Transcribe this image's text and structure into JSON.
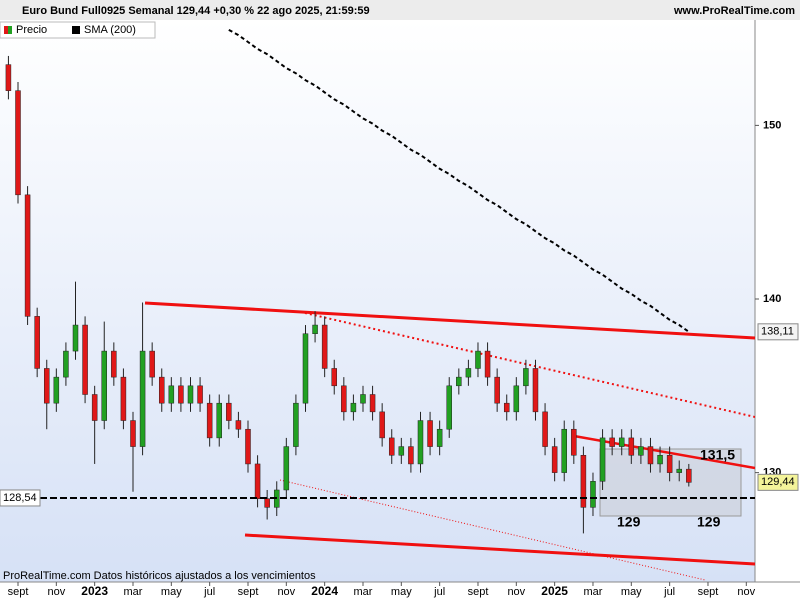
{
  "chart_data": {
    "type": "candlestick",
    "title": "Euro Bund Full0925 Semanal 129,44 +0,30 % 22 ago 2025, 21:59:59",
    "source": "www.ProRealTime.com",
    "footer": "ProRealTime.com  Datos históricos ajustados a los vencimientos",
    "up_color": "#22a022",
    "down_color": "#e01818",
    "ylim": [
      123.7,
      156.07
    ],
    "yticks": [
      130,
      140,
      150
    ],
    "categories": [
      null,
      "sept",
      null,
      null,
      null,
      "nov",
      null,
      null,
      null,
      "2023",
      null,
      null,
      null,
      "mar",
      null,
      null,
      null,
      "may",
      null,
      null,
      null,
      "jul",
      null,
      null,
      null,
      "sept",
      null,
      null,
      null,
      "nov",
      null,
      null,
      null,
      "2024",
      null,
      null,
      null,
      "mar",
      null,
      null,
      null,
      "may",
      null,
      null,
      null,
      "jul",
      null,
      null,
      null,
      "sept",
      null,
      null,
      null,
      "nov",
      null,
      null,
      null,
      "2025",
      null,
      null,
      null,
      "mar",
      null,
      null,
      null,
      "may",
      null,
      null,
      null,
      "jul",
      null,
      null,
      null,
      "sept",
      null,
      null,
      null,
      "nov"
    ],
    "series": [
      {
        "name": "Precio",
        "values": [
          [
            153.5,
            154,
            151.5,
            152
          ],
          [
            152,
            152.5,
            145.5,
            146
          ],
          [
            146,
            146.5,
            138.5,
            139
          ],
          [
            139,
            139.5,
            135.5,
            136
          ],
          [
            136,
            136.5,
            132.5,
            134
          ],
          [
            134,
            136,
            133.5,
            135.5
          ],
          [
            135.5,
            137.5,
            135,
            137
          ],
          [
            137,
            141,
            136.5,
            138.5
          ],
          [
            138.5,
            139,
            134,
            134.5
          ],
          [
            134.5,
            135,
            130.5,
            133
          ],
          [
            133,
            138.7,
            132.5,
            137
          ],
          [
            137,
            137.5,
            135,
            135.5
          ],
          [
            135.5,
            136,
            132.5,
            133
          ],
          [
            133,
            133.5,
            128.9,
            131.5
          ],
          [
            131.5,
            139.8,
            131,
            137
          ],
          [
            137,
            137.5,
            135,
            135.5
          ],
          [
            135.5,
            136,
            133.5,
            134
          ],
          [
            134,
            135.5,
            133.5,
            135
          ],
          [
            135,
            135.5,
            133.5,
            134
          ],
          [
            134,
            135.5,
            133.5,
            135
          ],
          [
            135,
            135.5,
            133.5,
            134
          ],
          [
            134,
            134.5,
            131.5,
            132
          ],
          [
            132,
            134.5,
            131.5,
            134
          ],
          [
            134,
            134.5,
            132.5,
            133
          ],
          [
            133,
            133.5,
            132,
            132.5
          ],
          [
            132.5,
            133,
            130,
            130.5
          ],
          [
            130.5,
            131,
            128,
            128.5
          ],
          [
            128.5,
            129,
            127.3,
            128
          ],
          [
            128,
            129.5,
            127.5,
            129
          ],
          [
            129,
            132,
            128.5,
            131.5
          ],
          [
            131.5,
            134.5,
            131,
            134
          ],
          [
            134,
            138.5,
            133.5,
            138
          ],
          [
            138,
            139.3,
            137.5,
            138.5
          ],
          [
            138.5,
            139,
            135.5,
            136
          ],
          [
            136,
            136.5,
            134.5,
            135
          ],
          [
            135,
            135.5,
            133,
            133.5
          ],
          [
            133.5,
            134.5,
            133,
            134
          ],
          [
            134,
            135,
            133.5,
            134.5
          ],
          [
            134.5,
            135,
            133,
            133.5
          ],
          [
            133.5,
            134,
            131.5,
            132
          ],
          [
            132,
            132.5,
            130.5,
            131
          ],
          [
            131,
            132,
            130.5,
            131.5
          ],
          [
            131.5,
            132,
            130,
            130.5
          ],
          [
            130.5,
            133.5,
            130,
            133
          ],
          [
            133,
            133.5,
            131,
            131.5
          ],
          [
            131.5,
            133,
            131,
            132.5
          ],
          [
            132.5,
            135.5,
            132,
            135
          ],
          [
            135,
            136,
            134.5,
            135.5
          ],
          [
            135.5,
            136.5,
            135,
            136
          ],
          [
            136,
            137.5,
            135.5,
            137
          ],
          [
            137,
            137.5,
            135,
            135.5
          ],
          [
            135.5,
            136,
            133.5,
            134
          ],
          [
            134,
            134.5,
            133,
            133.5
          ],
          [
            133.5,
            135.5,
            133,
            135
          ],
          [
            135,
            136.5,
            134.5,
            136
          ],
          [
            136,
            136.5,
            133,
            133.5
          ],
          [
            133.5,
            134,
            131,
            131.5
          ],
          [
            131.5,
            132,
            129.5,
            130
          ],
          [
            130,
            133,
            129.5,
            132.5
          ],
          [
            132.5,
            133,
            130.5,
            131
          ],
          [
            131,
            131.5,
            126.5,
            128
          ],
          [
            128,
            130,
            127.5,
            129.5
          ],
          [
            129.5,
            132.5,
            129,
            132
          ],
          [
            132,
            132.5,
            131,
            131.5
          ],
          [
            131.5,
            132.5,
            131,
            132
          ],
          [
            132,
            132.5,
            130.5,
            131
          ],
          [
            131,
            132,
            130.5,
            131.5
          ],
          [
            131.5,
            132,
            130,
            130.5
          ],
          [
            130.5,
            131.5,
            130,
            131
          ],
          [
            131,
            131.5,
            129.5,
            130
          ],
          [
            130,
            130.7,
            129.5,
            130.2
          ],
          [
            130.2,
            130.5,
            129.2,
            129.44
          ],
          null,
          null,
          null,
          null,
          null,
          null
        ]
      },
      {
        "name": "SMA (200)",
        "color": "#000000",
        "values": [
          null,
          null,
          null,
          null,
          null,
          null,
          null,
          null,
          null,
          null,
          null,
          null,
          null,
          null,
          null,
          null,
          null,
          null,
          null,
          null,
          null,
          null,
          null,
          155.5,
          155.2,
          154.8,
          154.4,
          154.1,
          153.7,
          153.3,
          153.0,
          152.6,
          152.3,
          151.9,
          151.5,
          151.2,
          150.8,
          150.4,
          150.1,
          149.7,
          149.4,
          149.0,
          148.6,
          148.3,
          147.9,
          147.5,
          147.2,
          146.8,
          146.5,
          146.1,
          145.7,
          145.4,
          145.0,
          144.6,
          144.3,
          143.9,
          143.5,
          143.2,
          142.8,
          142.5,
          142.1,
          141.7,
          141.4,
          141.0,
          140.6,
          140.3,
          139.9,
          139.6,
          139.2,
          138.8,
          138.5,
          138.11,
          null,
          null,
          null,
          null,
          null,
          null
        ]
      }
    ],
    "price_tags": [
      {
        "value": 138.11,
        "label": "138,11"
      },
      {
        "value": 129.44,
        "label": "129,44"
      },
      {
        "value": 128.54,
        "label": "128,54"
      }
    ],
    "annotations": [
      "131,5",
      "129",
      "129"
    ]
  }
}
